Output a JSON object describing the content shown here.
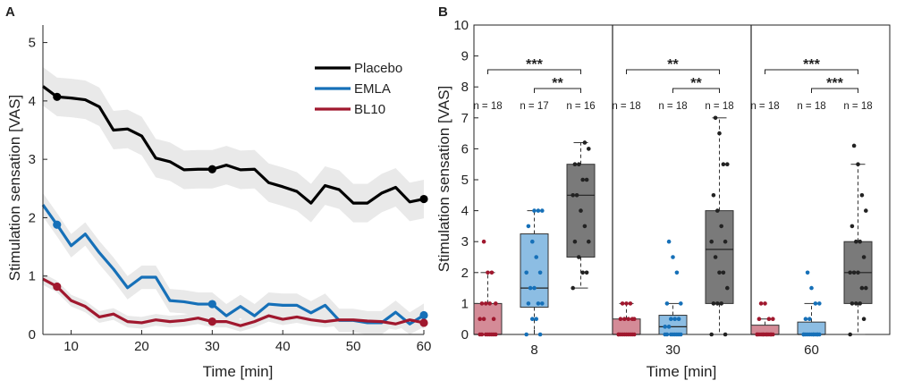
{
  "chart_data": [
    {
      "panel": "A",
      "type": "line",
      "xlabel": "Time [min]",
      "ylabel": "Stimulation sensation [VAS]",
      "xlim": [
        6,
        60
      ],
      "ylim": [
        0,
        5.3
      ],
      "xticks": [
        10,
        20,
        30,
        40,
        50,
        60
      ],
      "yticks": [
        0,
        1,
        2,
        3,
        4,
        5
      ],
      "legend_position": "top-right",
      "x": [
        6,
        8,
        10,
        12,
        14,
        16,
        18,
        20,
        22,
        24,
        26,
        28,
        30,
        32,
        34,
        36,
        38,
        40,
        42,
        44,
        46,
        48,
        50,
        52,
        54,
        56,
        58,
        60
      ],
      "series": [
        {
          "name": "Placebo",
          "color": "#000000",
          "values": [
            4.25,
            4.07,
            4.05,
            4.02,
            3.9,
            3.5,
            3.52,
            3.4,
            3.02,
            2.96,
            2.82,
            2.83,
            2.83,
            2.9,
            2.82,
            2.83,
            2.6,
            2.53,
            2.45,
            2.25,
            2.55,
            2.48,
            2.25,
            2.25,
            2.42,
            2.52,
            2.27,
            2.32
          ],
          "ci_halfwidth": 0.33,
          "markers": [
            [
              8,
              4.07
            ],
            [
              30,
              2.83
            ],
            [
              60,
              2.32
            ]
          ]
        },
        {
          "name": "EMLA",
          "color": "#1670b8",
          "values": [
            2.22,
            1.88,
            1.52,
            1.72,
            1.4,
            1.12,
            0.8,
            0.98,
            0.98,
            0.58,
            0.56,
            0.52,
            0.52,
            0.32,
            0.48,
            0.32,
            0.52,
            0.5,
            0.5,
            0.37,
            0.5,
            0.24,
            0.24,
            0.2,
            0.2,
            0.38,
            0.18,
            0.33
          ],
          "ci_halfwidth": 0.2,
          "markers": [
            [
              8,
              1.88
            ],
            [
              30,
              0.52
            ],
            [
              60,
              0.33
            ]
          ]
        },
        {
          "name": "BL10",
          "color": "#a0182e",
          "values": [
            0.95,
            0.82,
            0.58,
            0.48,
            0.3,
            0.35,
            0.22,
            0.2,
            0.25,
            0.22,
            0.24,
            0.28,
            0.22,
            0.22,
            0.15,
            0.22,
            0.32,
            0.26,
            0.3,
            0.25,
            0.22,
            0.25,
            0.25,
            0.23,
            0.22,
            0.18,
            0.25,
            0.2
          ],
          "ci_halfwidth": 0.1,
          "markers": [
            [
              8,
              0.82
            ],
            [
              30,
              0.22
            ],
            [
              60,
              0.2
            ]
          ]
        }
      ]
    },
    {
      "panel": "B",
      "type": "box",
      "xlabel": "Time [min]",
      "ylabel": "Stimulation sensation [VAS]",
      "ylim": [
        0,
        10
      ],
      "yticks": [
        0,
        1,
        2,
        3,
        4,
        5,
        6,
        7,
        8,
        9,
        10
      ],
      "groups": [
        "8",
        "30",
        "60"
      ],
      "series_colors": {
        "BL10": "#a0182e",
        "EMLA": "#1670b8",
        "Placebo": "#222222"
      },
      "box_fills": {
        "BL10": "#d48b97",
        "EMLA": "#8cbde3",
        "Placebo": "#7a7a7a"
      },
      "boxes": [
        {
          "group": "8",
          "series": "BL10",
          "n_label": "n = 18",
          "min": 0,
          "q1": 0,
          "median": 0,
          "q3": 1.0,
          "max": 2.0,
          "points": [
            0,
            0,
            0,
            0,
            0,
            0,
            0,
            0,
            0.5,
            0.5,
            0.5,
            1,
            1,
            1,
            1,
            2,
            2,
            3
          ]
        },
        {
          "group": "8",
          "series": "EMLA",
          "n_label": "n = 17",
          "min": 0,
          "q1": 0.88,
          "median": 1.5,
          "q3": 3.25,
          "max": 4.0,
          "points": [
            0,
            0,
            0.5,
            0.5,
            1,
            1,
            1,
            1.5,
            1.5,
            2,
            2,
            2.5,
            3,
            3.5,
            4,
            4,
            4
          ]
        },
        {
          "group": "8",
          "series": "Placebo",
          "n_label": "n = 16",
          "min": 1.5,
          "q1": 2.5,
          "median": 4.5,
          "q3": 5.5,
          "max": 6.2,
          "points": [
            1.5,
            2,
            2,
            2.5,
            3,
            3,
            3.5,
            4,
            4.5,
            4.5,
            5,
            5,
            5.5,
            5.5,
            6,
            6.2
          ]
        },
        {
          "group": "30",
          "series": "BL10",
          "n_label": "n = 18",
          "min": 0,
          "q1": 0,
          "median": 0,
          "q3": 0.5,
          "max": 1.0,
          "points": [
            0,
            0,
            0,
            0,
            0,
            0,
            0,
            0,
            0,
            0,
            0.5,
            0.5,
            0.5,
            0.5,
            0.5,
            1,
            1,
            1
          ]
        },
        {
          "group": "30",
          "series": "EMLA",
          "n_label": "n = 18",
          "min": 0,
          "q1": 0,
          "median": 0.25,
          "q3": 0.62,
          "max": 1.0,
          "points": [
            0,
            0,
            0,
            0,
            0,
            0,
            0,
            0,
            0.25,
            0.25,
            0.5,
            0.5,
            0.5,
            1,
            1,
            2,
            2.5,
            3
          ]
        },
        {
          "group": "30",
          "series": "Placebo",
          "n_label": "n = 18",
          "min": 0,
          "q1": 1.0,
          "median": 2.75,
          "q3": 4.0,
          "max": 7.0,
          "points": [
            0,
            0,
            1,
            1,
            1,
            1.5,
            2,
            2,
            2.5,
            3,
            3,
            3.5,
            4,
            4.5,
            5.5,
            5.5,
            6.5,
            7
          ]
        },
        {
          "group": "60",
          "series": "BL10",
          "n_label": "n = 18",
          "min": 0,
          "q1": 0,
          "median": 0,
          "q3": 0.3,
          "max": 0.5,
          "points": [
            0,
            0,
            0,
            0,
            0,
            0,
            0,
            0,
            0,
            0,
            0,
            0,
            0,
            0.5,
            0.5,
            0.5,
            1,
            1
          ]
        },
        {
          "group": "60",
          "series": "EMLA",
          "n_label": "n = 18",
          "min": 0,
          "q1": 0,
          "median": 0,
          "q3": 0.4,
          "max": 1.0,
          "points": [
            0,
            0,
            0,
            0,
            0,
            0,
            0,
            0,
            0,
            0,
            0,
            0,
            0.5,
            0.5,
            1,
            1,
            1.5,
            2
          ]
        },
        {
          "group": "60",
          "series": "Placebo",
          "n_label": "n = 18",
          "min": 0,
          "q1": 1.0,
          "median": 2.0,
          "q3": 3.0,
          "max": 5.5,
          "points": [
            0,
            0.5,
            1,
            1,
            1,
            1.5,
            1.5,
            2,
            2,
            2,
            2.5,
            3,
            3,
            3.5,
            4,
            4.5,
            5.5,
            6.1
          ]
        }
      ],
      "significance": [
        {
          "group": "8",
          "from": "BL10",
          "to": "Placebo",
          "label": "***"
        },
        {
          "group": "8",
          "from": "EMLA",
          "to": "Placebo",
          "label": "**"
        },
        {
          "group": "30",
          "from": "BL10",
          "to": "Placebo",
          "label": "**"
        },
        {
          "group": "30",
          "from": "EMLA",
          "to": "Placebo",
          "label": "**"
        },
        {
          "group": "60",
          "from": "BL10",
          "to": "Placebo",
          "label": "***"
        },
        {
          "group": "60",
          "from": "EMLA",
          "to": "Placebo",
          "label": "***"
        }
      ]
    }
  ]
}
